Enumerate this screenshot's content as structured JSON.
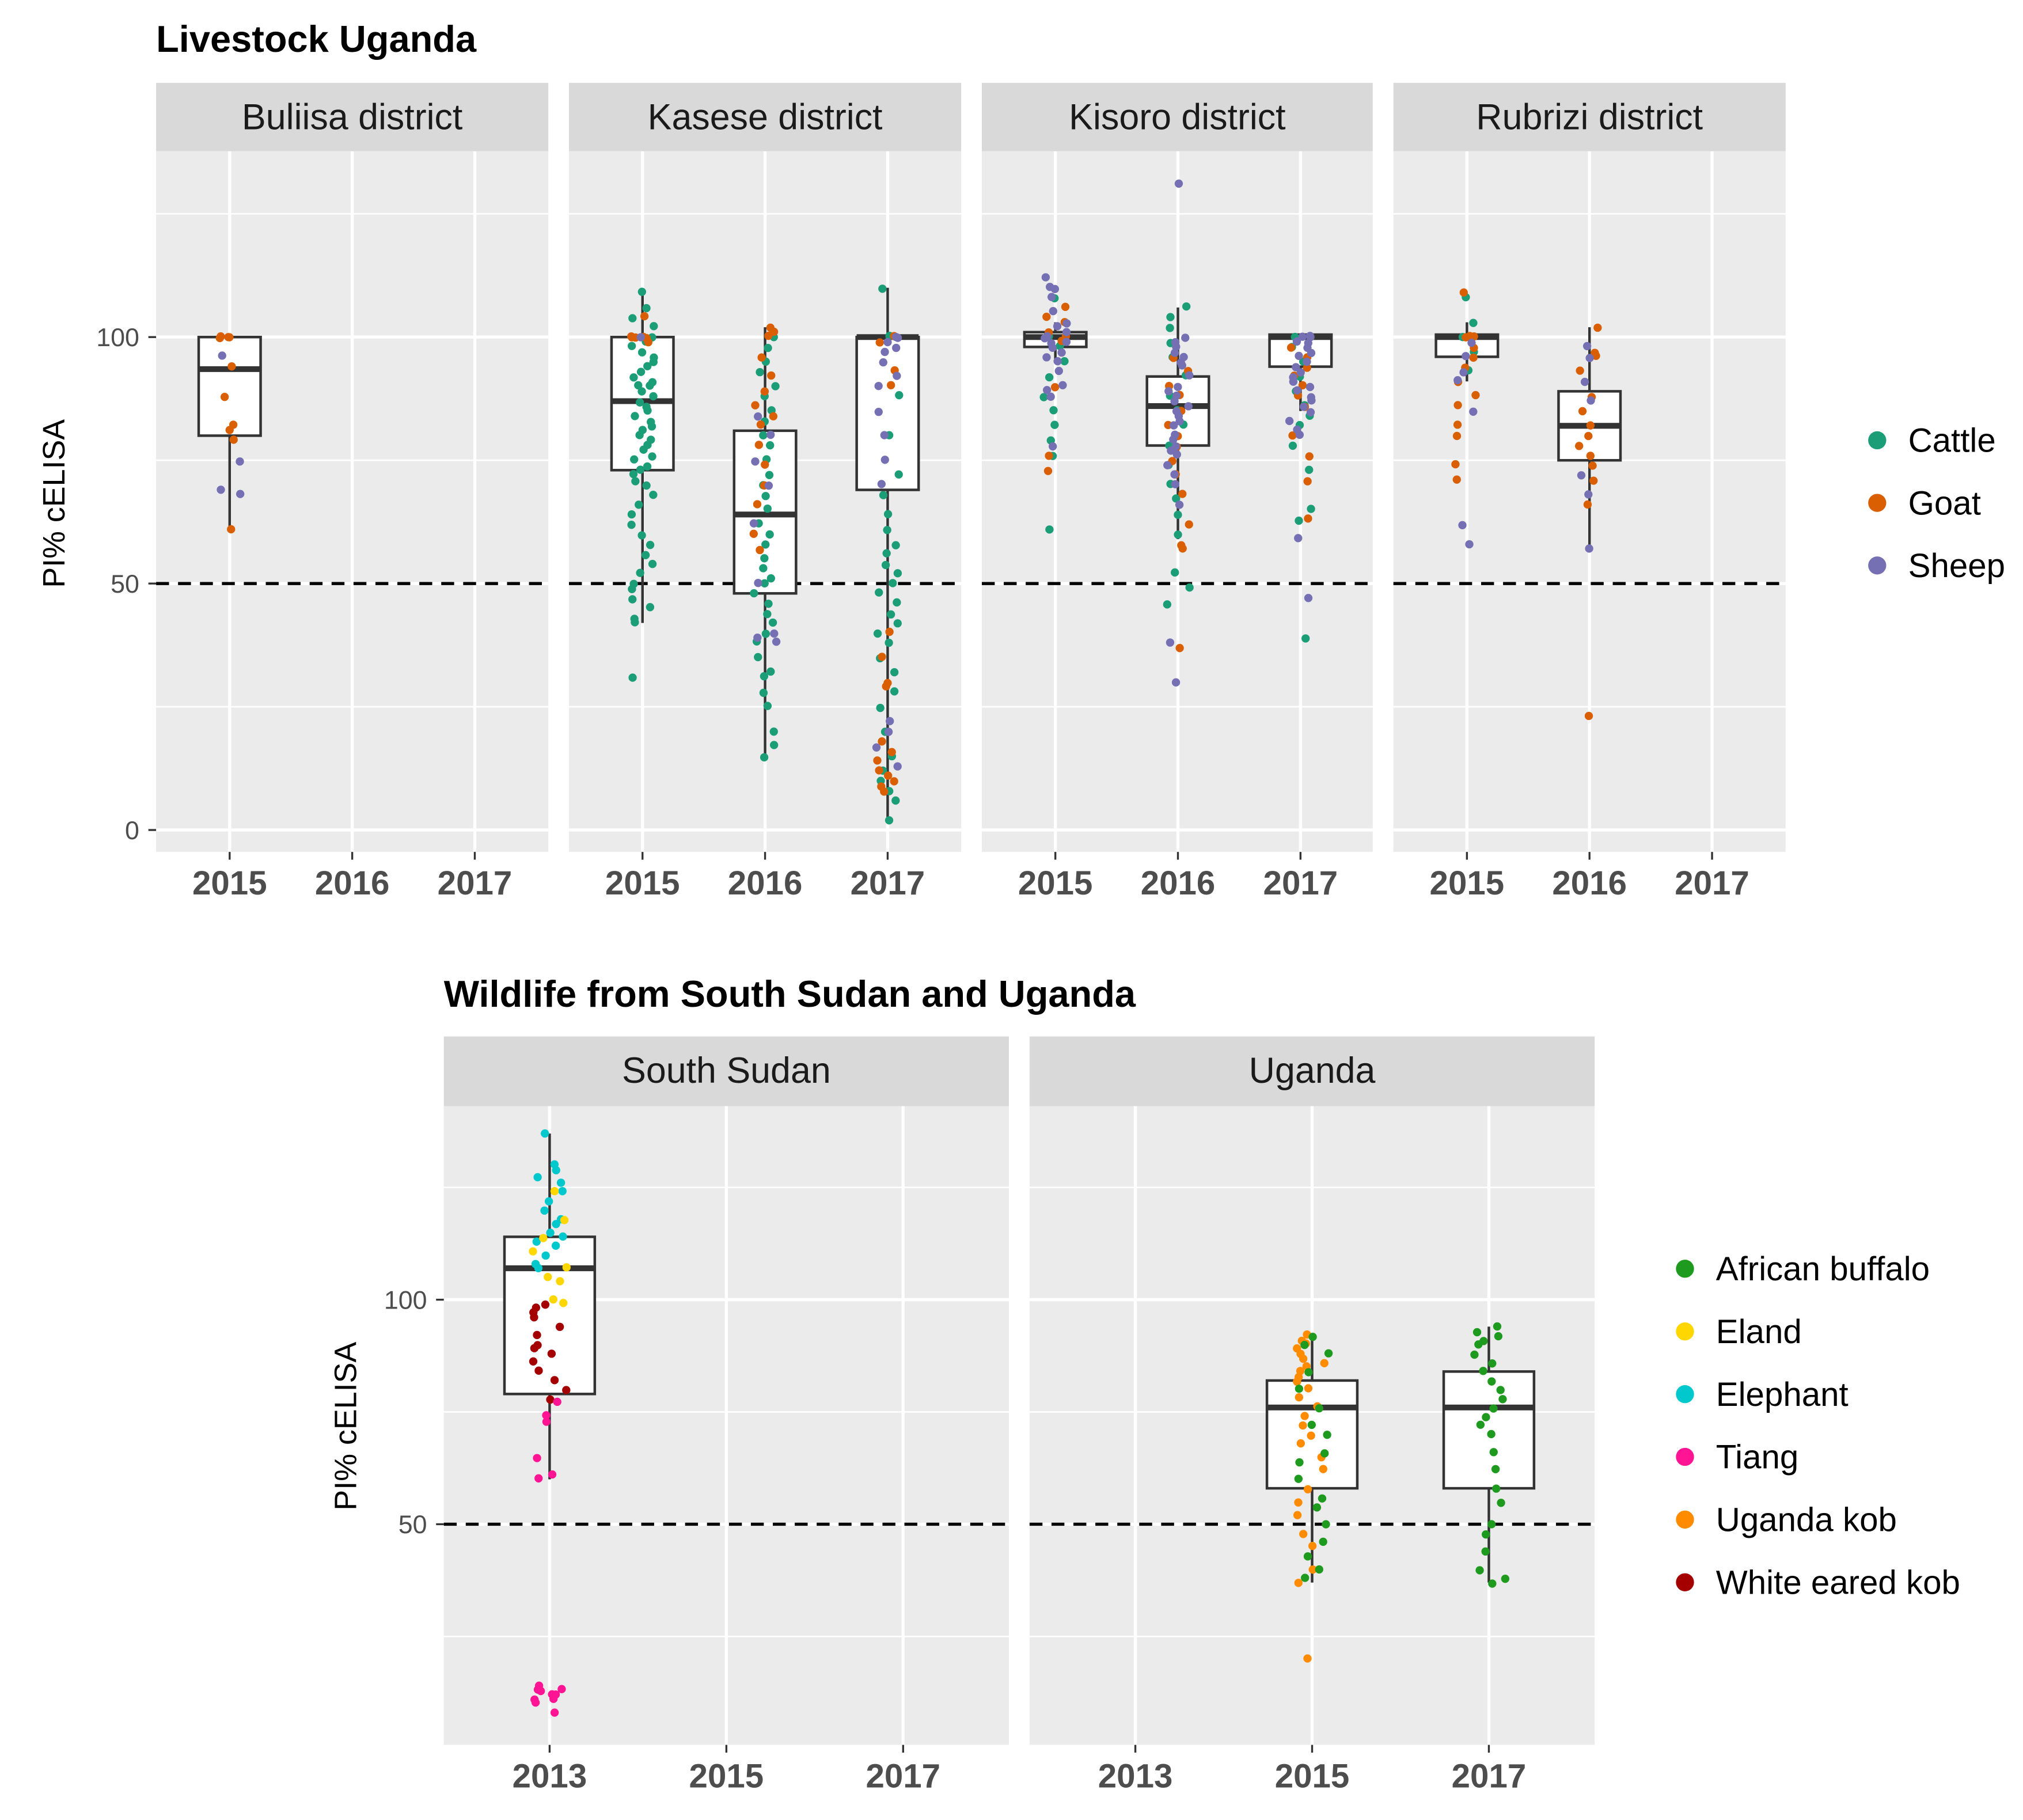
{
  "chart_data": [
    {
      "type": "box",
      "title": "Livestock Uganda",
      "ylabel": "PI% cELISA",
      "xlabel": "",
      "ylim": [
        -4.5,
        137.7
      ],
      "yticks": [
        0,
        50,
        100
      ],
      "yminor": [
        25,
        75,
        125
      ],
      "threshold": 50,
      "categories": [
        "2015",
        "2016",
        "2017"
      ],
      "legend_position": "right",
      "legend": [
        {
          "name": "Cattle",
          "color": "#1b9e77"
        },
        {
          "name": "Goat",
          "color": "#d95f02"
        },
        {
          "name": "Sheep",
          "color": "#7570b3"
        }
      ],
      "panels": [
        {
          "label": "Buliisa district",
          "groups": [
            {
              "x": "2015",
              "box": [
                61,
                80,
                93.5,
                100,
                100
              ],
              "points": {
                "Goat": [
                  100,
                  100,
                  100,
                  100,
                  94,
                  88,
                  82,
                  81,
                  79,
                  61
                ],
                "Sheep": [
                  96,
                  75,
                  69,
                  68
                ]
              }
            }
          ]
        },
        {
          "label": "Kasese district",
          "groups": [
            {
              "x": "2015",
              "box": [
                42,
                73,
                87,
                100,
                109
              ],
              "points": {
                "Cattle": [
                  109,
                  106,
                  104,
                  102,
                  100,
                  99,
                  98,
                  97,
                  96,
                  95,
                  94,
                  93,
                  92,
                  91,
                  90,
                  90,
                  89,
                  88,
                  87,
                  86,
                  85,
                  84,
                  83,
                  82,
                  81,
                  80,
                  79,
                  78,
                  77,
                  76,
                  75,
                  74,
                  73,
                  72,
                  71,
                  70,
                  68,
                  66,
                  64,
                  62,
                  60,
                  58,
                  56,
                  54,
                  52,
                  50,
                  49,
                  47,
                  45,
                  43,
                  42,
                  31
                ],
                "Goat": [
                  104,
                  100,
                  100,
                  100,
                  100,
                  100,
                  99
                ],
                "Sheep": [
                  100
                ]
              }
            },
            {
              "x": "2016",
              "box": [
                15,
                48,
                64,
                81,
                102
              ],
              "points": {
                "Cattle": [
                  100,
                  98,
                  95,
                  93,
                  90,
                  88,
                  85,
                  83,
                  80,
                  78,
                  75,
                  72,
                  70,
                  68,
                  65,
                  62,
                  60,
                  58,
                  55,
                  53,
                  51,
                  50,
                  48,
                  46,
                  44,
                  42,
                  40,
                  38,
                  35,
                  32,
                  31,
                  28,
                  25,
                  20,
                  17,
                  15
                ],
                "Goat": [
                  102,
                  101,
                  100,
                  96,
                  92,
                  89,
                  86,
                  84,
                  82,
                  78,
                  74,
                  70,
                  66,
                  60,
                  57
                ],
                "Sheep": [
                  84,
                  80,
                  75,
                  70,
                  62,
                  50,
                  40,
                  39,
                  38
                ]
              }
            },
            {
              "x": "2017",
              "box": [
                2,
                69,
                100,
                100,
                110
              ],
              "points": {
                "Cattle": [
                  110,
                  100,
                  88,
                  80,
                  72,
                  68,
                  64,
                  61,
                  58,
                  56,
                  54,
                  52,
                  50,
                  48,
                  46,
                  44,
                  42,
                  40,
                  38,
                  35,
                  32,
                  28,
                  25,
                  20,
                  15,
                  12,
                  10,
                  8,
                  6,
                  2
                ],
                "Goat": [
                  100,
                  99,
                  93,
                  90,
                  40,
                  35,
                  30,
                  29,
                  18,
                  16,
                  14,
                  12,
                  11,
                  10,
                  9,
                  8
                ],
                "Sheep": [
                  100,
                  100,
                  99,
                  98,
                  97,
                  95,
                  92,
                  90,
                  85,
                  80,
                  75,
                  70,
                  22,
                  20,
                  17,
                  13
                ]
              }
            }
          ]
        },
        {
          "label": "Kisoro district",
          "groups": [
            {
              "x": "2015",
              "box": [
                95,
                98,
                100,
                101,
                103
              ],
              "points": {
                "Cattle": [
                  108,
                  100,
                  98,
                  95,
                  92,
                  88,
                  85,
                  82,
                  79,
                  76,
                  61
                ],
                "Goat": [
                  106,
                  104,
                  103,
                  101,
                  100,
                  99,
                  90,
                  76,
                  73
                ],
                "Sheep": [
                  112,
                  110,
                  110,
                  108,
                  105,
                  103,
                  102,
                  101,
                  100,
                  100,
                  99,
                  99,
                  98,
                  97,
                  96,
                  95,
                  93,
                  90,
                  89,
                  88,
                  78
                ]
              }
            },
            {
              "x": "2016",
              "box": [
                59,
                78,
                86,
                92,
                106
              ],
              "points": {
                "Cattle": [
                  106,
                  104,
                  102,
                  99,
                  96,
                  92,
                  88,
                  85,
                  82,
                  78,
                  74,
                  70,
                  67,
                  64,
                  60,
                  52,
                  49,
                  46
                ],
                "Goat": [
                  96,
                  93,
                  90,
                  88,
                  85,
                  82,
                  80,
                  78,
                  75,
                  72,
                  68,
                  62,
                  58,
                  57,
                  37
                ],
                "Sheep": [
                  131,
                  100,
                  99,
                  98,
                  97,
                  96,
                  95,
                  94,
                  92,
                  90,
                  89,
                  88,
                  87,
                  86,
                  85,
                  84,
                  83,
                  82,
                  80,
                  79,
                  78,
                  77,
                  76,
                  74,
                  72,
                  70,
                  66,
                  38,
                  30
                ]
              }
            },
            {
              "x": "2017",
              "box": [
                85,
                94,
                100,
                100.5,
                100.5
              ],
              "points": {
                "Cattle": [
                  100,
                  98,
                  95,
                  92,
                  89,
                  86,
                  84,
                  82,
                  78,
                  73,
                  65,
                  63,
                  39
                ],
                "Goat": [
                  98,
                  96,
                  94,
                  92,
                  90,
                  88,
                  86,
                  80,
                  76,
                  71,
                  63
                ],
                "Sheep": [
                  100,
                  100,
                  100,
                  99,
                  99,
                  98,
                  97,
                  96,
                  95,
                  94,
                  93,
                  92,
                  91,
                  90,
                  89,
                  88,
                  87,
                  86,
                  85,
                  83,
                  81,
                  80,
                  59,
                  47
                ]
              }
            }
          ]
        },
        {
          "label": "Rubrizi district",
          "groups": [
            {
              "x": "2015",
              "box": [
                91,
                96,
                100,
                100.5,
                103
              ],
              "points": {
                "Cattle": [
                  108,
                  103,
                  100,
                  97,
                  93
                ],
                "Goat": [
                  109,
                  100,
                  100,
                  100,
                  98,
                  96,
                  94,
                  91,
                  88,
                  86,
                  82,
                  80,
                  74,
                  71
                ],
                "Sheep": [
                  99,
                  96,
                  93,
                  91,
                  85,
                  62,
                  58
                ]
              }
            },
            {
              "x": "2016",
              "box": [
                57,
                75,
                82,
                89,
                102
              ],
              "points": {
                "Goat": [
                  102,
                  97,
                  96,
                  93,
                  88,
                  85,
                  82,
                  80,
                  78,
                  76,
                  74,
                  71,
                  66,
                  23
                ],
                "Sheep": [
                  98,
                  96,
                  91,
                  87,
                  72,
                  68,
                  57
                ]
              }
            }
          ]
        }
      ]
    },
    {
      "type": "box",
      "title": "Wildlife from South Sudan and Uganda",
      "ylabel": "PI% cELISA",
      "xlabel": "",
      "ylim": [
        1,
        143
      ],
      "yticks": [
        50,
        100
      ],
      "yminor": [
        25,
        75,
        125
      ],
      "threshold": 50,
      "categories": [
        "2013",
        "2015",
        "2017"
      ],
      "legend_position": "right",
      "legend": [
        {
          "name": "African buffalo",
          "color": "#1e9a1e"
        },
        {
          "name": "Eland",
          "color": "#ffd700"
        },
        {
          "name": "Elephant",
          "color": "#00c8cc"
        },
        {
          "name": "Tiang",
          "color": "#ff1493"
        },
        {
          "name": "Uganda kob",
          "color": "#ff8c00"
        },
        {
          "name": "White eared kob",
          "color": "#a50000"
        }
      ],
      "panels": [
        {
          "label": "South Sudan",
          "groups": [
            {
              "x": "2013",
              "box": [
                60,
                79,
                107,
                114,
                137
              ],
              "points": {
                "Elephant": [
                  137,
                  130,
                  129,
                  127,
                  126,
                  124,
                  122,
                  120,
                  118,
                  117,
                  115,
                  114,
                  113,
                  112,
                  110,
                  108,
                  107
                ],
                "Eland": [
                  124,
                  118,
                  114,
                  111,
                  107,
                  105,
                  104,
                  100,
                  99
                ],
                "White eared kob": [
                  99,
                  98,
                  97,
                  96,
                  94,
                  92,
                  90,
                  89,
                  88,
                  86,
                  84,
                  82,
                  80,
                  78
                ],
                "Tiang": [
                  77,
                  74,
                  73,
                  65,
                  61,
                  60,
                  14,
                  13,
                  13,
                  13,
                  12,
                  12,
                  11,
                  11,
                  10,
                  8
                ]
              }
            }
          ]
        },
        {
          "label": "Uganda",
          "groups": [
            {
              "x": "2015",
              "box": [
                37,
                58,
                76,
                82,
                92
              ],
              "points": {
                "Uganda kob": [
                  92,
                  91,
                  90,
                  89,
                  88,
                  87,
                  86,
                  85,
                  84,
                  83,
                  82,
                  80,
                  78,
                  76,
                  74,
                  72,
                  70,
                  68,
                  65,
                  62,
                  58,
                  55,
                  52,
                  48,
                  45,
                  40,
                  37,
                  20
                ],
                "African buffalo": [
                  92,
                  90,
                  88,
                  84,
                  80,
                  76,
                  72,
                  70,
                  66,
                  64,
                  60,
                  56,
                  54,
                  50,
                  46,
                  43,
                  40,
                  38
                ]
              }
            },
            {
              "x": "2017",
              "box": [
                37,
                58,
                76,
                84,
                94
              ],
              "points": {
                "African buffalo": [
                  94,
                  93,
                  92,
                  91,
                  90,
                  88,
                  86,
                  84,
                  82,
                  80,
                  78,
                  76,
                  74,
                  72,
                  70,
                  66,
                  62,
                  58,
                  55,
                  50,
                  48,
                  44,
                  40,
                  38,
                  37
                ]
              }
            }
          ]
        }
      ]
    }
  ]
}
